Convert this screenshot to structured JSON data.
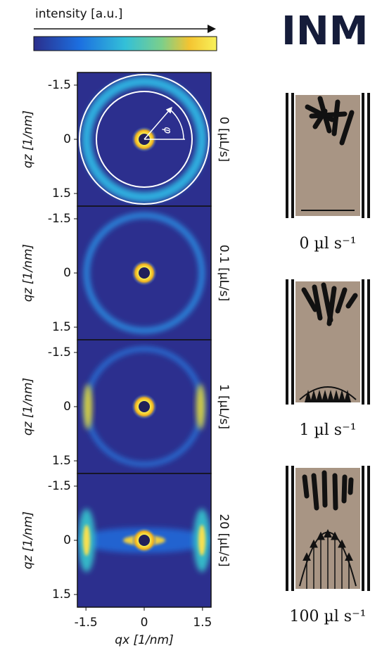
{
  "colorbar": {
    "label": "intensity [a.u.]"
  },
  "logo": "INM",
  "phi": "φ",
  "panels": [
    {
      "flow": "0 [µL/s]",
      "y_label": "qz [1/nm]"
    },
    {
      "flow": "0.1 [µL/s]",
      "y_label": "qz [1/nm]"
    },
    {
      "flow": "1 [µL/s]",
      "y_label": "qz [1/nm]"
    },
    {
      "flow": "20 [µL/s]",
      "y_label": "qz [1/nm]"
    }
  ],
  "qz_lim": [
    -1.85,
    1.85
  ],
  "qz_ticks": [
    -1.5,
    0,
    1.5
  ],
  "qx_lim": [
    -1.72,
    1.72
  ],
  "qx_ticks": [
    -1.5,
    0,
    1.5
  ],
  "x_label": "qx [1/nm]",
  "schematics": [
    {
      "label": "0 µl s⁻¹"
    },
    {
      "label": "1 µl s⁻¹"
    },
    {
      "label": "100 µl s⁻¹"
    }
  ]
}
